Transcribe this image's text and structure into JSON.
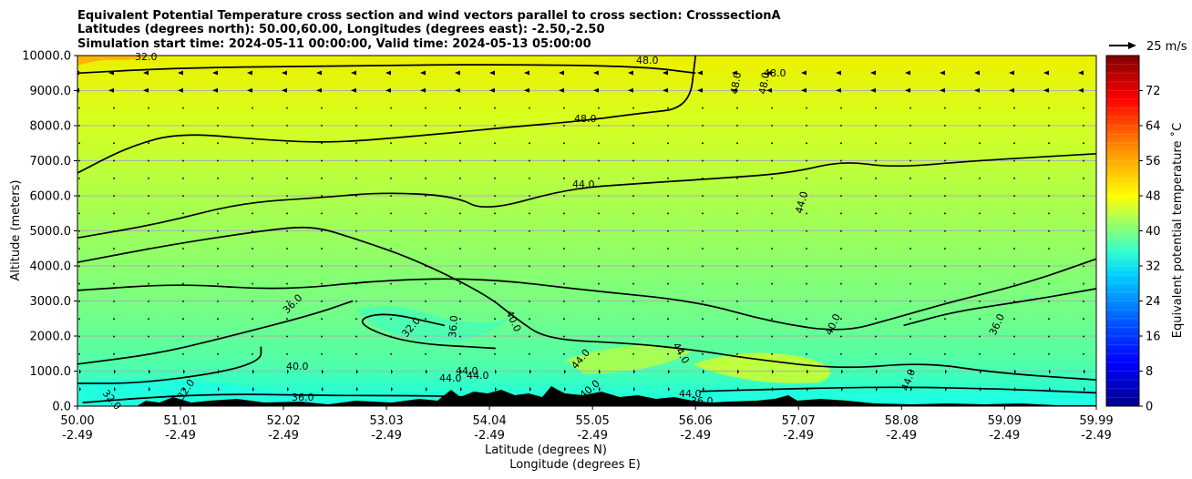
{
  "chart_data": {
    "type": "heatmap",
    "title_lines": [
      "Equivalent Potential Temperature cross section and wind vectors parallel to cross section: CrosssectionA",
      "Latitudes (degrees north): 50.00,60.00, Longitudes (degrees east): -2.50,-2.50",
      "Simulation start time: 2024-05-11 00:00:00, Valid time: 2024-05-13 05:00:00"
    ],
    "ylabel": "Altitude (meters)",
    "xlabel_lines": [
      "Latitude (degrees N)",
      "Longitude (degrees E)"
    ],
    "ylim": [
      0,
      10000
    ],
    "yticks": [
      "0.0",
      "1000.0",
      "2000.0",
      "3000.0",
      "4000.0",
      "5000.0",
      "6000.0",
      "7000.0",
      "8000.0",
      "9000.0",
      "10000.0"
    ],
    "xlim": [
      50.0,
      59.99
    ],
    "xticks": [
      {
        "lat": "50.00",
        "lon": "-2.49"
      },
      {
        "lat": "51.01",
        "lon": "-2.49"
      },
      {
        "lat": "52.02",
        "lon": "-2.49"
      },
      {
        "lat": "53.03",
        "lon": "-2.49"
      },
      {
        "lat": "54.04",
        "lon": "-2.49"
      },
      {
        "lat": "55.05",
        "lon": "-2.49"
      },
      {
        "lat": "56.06",
        "lon": "-2.49"
      },
      {
        "lat": "57.07",
        "lon": "-2.49"
      },
      {
        "lat": "58.08",
        "lon": "-2.49"
      },
      {
        "lat": "59.09",
        "lon": "-2.49"
      },
      {
        "lat": "59.99",
        "lon": "-2.49"
      }
    ],
    "grid": "horizontal",
    "colorbar": {
      "label": "Equivalent potential temperature ˚C",
      "range": [
        0,
        80
      ],
      "ticks": [
        0,
        8,
        16,
        24,
        32,
        40,
        48,
        56,
        64,
        72
      ],
      "stops": [
        "#00008f",
        "#0000ff",
        "#0080ff",
        "#00ffff",
        "#80ff80",
        "#ffff00",
        "#ff8000",
        "#ff0000",
        "#800000"
      ]
    },
    "quiver_key": "25 m/s",
    "contours": [
      {
        "level": 48.0,
        "points": [
          [
            50.0,
            9500
          ],
          [
            51.0,
            9650
          ],
          [
            52.5,
            9700
          ],
          [
            54.0,
            9750
          ],
          [
            55.5,
            9700
          ],
          [
            56.06,
            9500
          ]
        ]
      },
      {
        "level": 48.0,
        "points": [
          [
            50.0,
            6650
          ],
          [
            50.5,
            7400
          ],
          [
            51.0,
            7800
          ],
          [
            51.8,
            7600
          ],
          [
            52.5,
            7500
          ],
          [
            53.5,
            7750
          ],
          [
            54.2,
            7950
          ],
          [
            55.0,
            8150
          ],
          [
            55.5,
            8350
          ],
          [
            56.0,
            8500
          ],
          [
            56.06,
            10000
          ]
        ]
      },
      {
        "level": 44.0,
        "points": [
          [
            50.0,
            4800
          ],
          [
            50.8,
            5200
          ],
          [
            51.6,
            5800
          ],
          [
            52.4,
            5950
          ],
          [
            53.0,
            6100
          ],
          [
            53.7,
            6000
          ],
          [
            54.0,
            5550
          ],
          [
            54.8,
            6200
          ],
          [
            55.5,
            6350
          ],
          [
            56.3,
            6500
          ],
          [
            57.0,
            6650
          ],
          [
            57.5,
            7000
          ],
          [
            58.0,
            6800
          ],
          [
            58.8,
            7000
          ],
          [
            59.99,
            7200
          ]
        ]
      },
      {
        "level": 40.0,
        "points": [
          [
            50.0,
            4100
          ],
          [
            50.9,
            4600
          ],
          [
            51.8,
            5000
          ],
          [
            52.3,
            5150
          ],
          [
            52.7,
            4800
          ],
          [
            53.3,
            4200
          ],
          [
            54.0,
            3200
          ],
          [
            54.3,
            2500
          ],
          [
            54.6,
            1900
          ],
          [
            55.4,
            1800
          ],
          [
            56.06,
            1600
          ],
          [
            56.6,
            1350
          ],
          [
            57.5,
            1050
          ],
          [
            58.3,
            1250
          ],
          [
            59.0,
            950
          ],
          [
            59.99,
            750
          ]
        ]
      },
      {
        "level": 40.0,
        "points": [
          [
            50.0,
            3300
          ],
          [
            51.0,
            3500
          ],
          [
            52.0,
            3300
          ],
          [
            53.0,
            3600
          ],
          [
            54.0,
            3650
          ],
          [
            55.0,
            3300
          ],
          [
            56.06,
            3000
          ],
          [
            56.8,
            2400
          ],
          [
            57.5,
            2100
          ],
          [
            58.0,
            2500
          ],
          [
            58.6,
            3000
          ],
          [
            59.3,
            3500
          ],
          [
            59.99,
            4200
          ]
        ]
      },
      {
        "level": 36.0,
        "points": [
          [
            50.0,
            1200
          ],
          [
            50.8,
            1500
          ],
          [
            51.5,
            2000
          ],
          [
            52.3,
            2600
          ],
          [
            52.7,
            3000
          ]
        ]
      },
      {
        "level": 36.0,
        "points": [
          [
            53.6,
            2300
          ],
          [
            53.0,
            2700
          ],
          [
            52.7,
            2400
          ],
          [
            53.2,
            1800
          ],
          [
            54.1,
            1650
          ]
        ]
      },
      {
        "level": 36.0,
        "points": [
          [
            58.1,
            2300
          ],
          [
            58.6,
            2700
          ],
          [
            59.3,
            3000
          ],
          [
            59.99,
            3350
          ]
        ]
      },
      {
        "level": 32.0,
        "points": [
          [
            50.0,
            650
          ],
          [
            50.6,
            650
          ],
          [
            51.4,
            950
          ],
          [
            51.8,
            1300
          ],
          [
            51.8,
            1700
          ]
        ]
      },
      {
        "level": 32.0,
        "points": [
          [
            50.05,
            100
          ],
          [
            50.7,
            250
          ],
          [
            51.5,
            350
          ],
          [
            52.5,
            300
          ],
          [
            53.2,
            300
          ],
          [
            53.7,
            280
          ],
          [
            54.2,
            220
          ],
          [
            54.7,
            200
          ]
        ]
      },
      {
        "level": 32.0,
        "points": [
          [
            56.1,
            420
          ],
          [
            57.0,
            500
          ],
          [
            58.0,
            550
          ],
          [
            59.0,
            500
          ],
          [
            59.99,
            380
          ]
        ]
      }
    ]
  }
}
